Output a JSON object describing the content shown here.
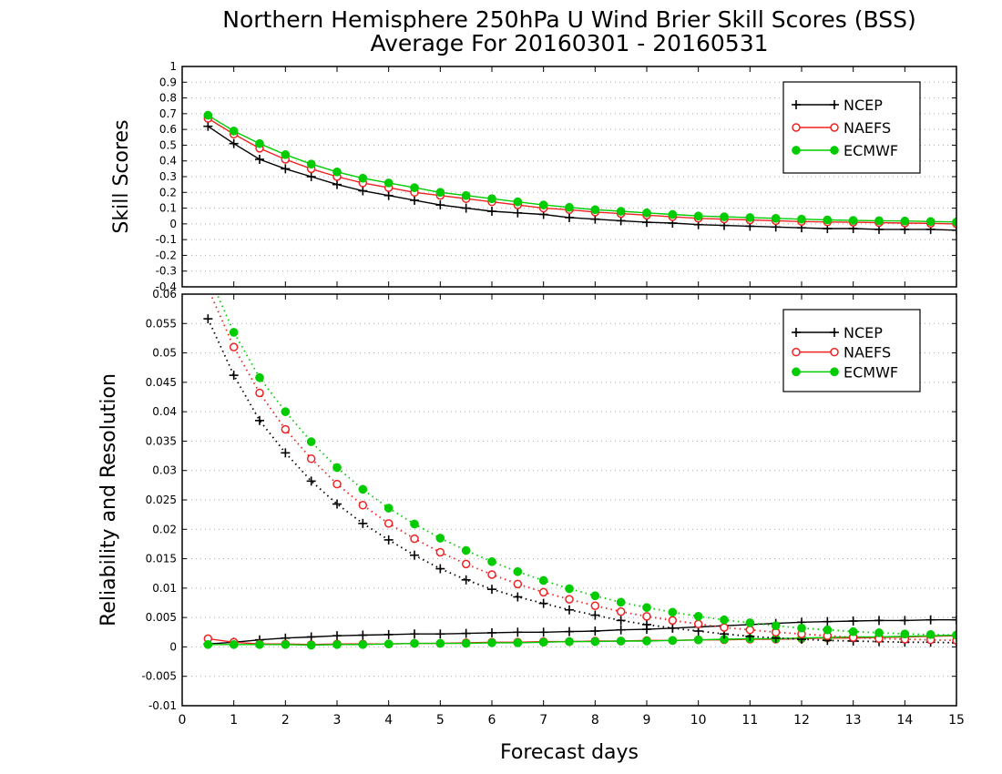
{
  "title_line1": "Northern Hemisphere 250hPa U Wind Brier Skill Scores (BSS)",
  "title_line2": "Average For 20160301 - 20160531",
  "xlabel": "Forecast days",
  "colors": {
    "NCEP": "#000000",
    "NAEFS": "#ee2222",
    "ECMWF": "#00cc00",
    "grid": "#aaaaaa"
  },
  "chart_data": [
    {
      "type": "line",
      "panel": "top",
      "ylabel": "Skill Scores",
      "xlim": [
        0,
        15
      ],
      "ylim": [
        -0.4,
        1
      ],
      "xticks": [
        "0",
        "1",
        "2",
        "3",
        "4",
        "5",
        "6",
        "7",
        "8",
        "9",
        "10",
        "11",
        "12",
        "13",
        "14",
        "15"
      ],
      "yticks": [
        "-0.4",
        "-0.3",
        "-0.2",
        "-0.1",
        "0",
        "0.1",
        "0.2",
        "0.3",
        "0.4",
        "0.5",
        "0.6",
        "0.7",
        "0.8",
        "0.9",
        "1"
      ],
      "grid": true,
      "legend": "top-right",
      "x": [
        0.5,
        1,
        1.5,
        2,
        2.5,
        3,
        3.5,
        4,
        4.5,
        5,
        5.5,
        6,
        6.5,
        7,
        7.5,
        8,
        8.5,
        9,
        9.5,
        10,
        10.5,
        11,
        11.5,
        12,
        12.5,
        13,
        13.5,
        14,
        14.5,
        15
      ],
      "series": [
        {
          "name": "NCEP",
          "marker": "plus",
          "line": "solid",
          "values": [
            0.62,
            0.51,
            0.41,
            0.35,
            0.3,
            0.25,
            0.21,
            0.18,
            0.15,
            0.12,
            0.1,
            0.08,
            0.07,
            0.06,
            0.04,
            0.03,
            0.02,
            0.01,
            0.005,
            -0.005,
            -0.01,
            -0.015,
            -0.02,
            -0.025,
            -0.03,
            -0.03,
            -0.035,
            -0.035,
            -0.035,
            -0.04
          ]
        },
        {
          "name": "NAEFS",
          "marker": "open-circle",
          "line": "solid",
          "values": [
            0.67,
            0.57,
            0.48,
            0.41,
            0.35,
            0.3,
            0.26,
            0.23,
            0.2,
            0.18,
            0.16,
            0.14,
            0.12,
            0.1,
            0.09,
            0.075,
            0.065,
            0.055,
            0.045,
            0.035,
            0.03,
            0.025,
            0.02,
            0.015,
            0.012,
            0.01,
            0.008,
            0.005,
            0.003,
            0.0
          ]
        },
        {
          "name": "ECMWF",
          "marker": "filled-circle",
          "line": "solid",
          "values": [
            0.69,
            0.59,
            0.51,
            0.44,
            0.38,
            0.33,
            0.29,
            0.26,
            0.23,
            0.2,
            0.18,
            0.16,
            0.14,
            0.12,
            0.105,
            0.09,
            0.08,
            0.07,
            0.06,
            0.05,
            0.045,
            0.04,
            0.035,
            0.03,
            0.025,
            0.022,
            0.02,
            0.018,
            0.015,
            0.012
          ]
        }
      ]
    },
    {
      "type": "line",
      "panel": "bottom",
      "ylabel": "Reliability and Resolution",
      "xlabel": "Forecast days",
      "xlim": [
        0,
        15
      ],
      "ylim": [
        -0.01,
        0.06
      ],
      "xticks": [
        "0",
        "1",
        "2",
        "3",
        "4",
        "5",
        "6",
        "7",
        "8",
        "9",
        "10",
        "11",
        "12",
        "13",
        "14",
        "15"
      ],
      "yticks": [
        "-0.01",
        "-0.005",
        "0",
        "0.005",
        "0.01",
        "0.015",
        "0.02",
        "0.025",
        "0.03",
        "0.035",
        "0.04",
        "0.045",
        "0.05",
        "0.055",
        "0.06"
      ],
      "grid": true,
      "legend": "top-right",
      "x": [
        0.5,
        1,
        1.5,
        2,
        2.5,
        3,
        3.5,
        4,
        4.5,
        5,
        5.5,
        6,
        6.5,
        7,
        7.5,
        8,
        8.5,
        9,
        9.5,
        10,
        10.5,
        11,
        11.5,
        12,
        12.5,
        13,
        13.5,
        14,
        14.5,
        15
      ],
      "series": [
        {
          "name": "NCEP",
          "marker": "plus",
          "line": "solid",
          "kind": "reliability",
          "values": [
            0.0005,
            0.0008,
            0.0012,
            0.0015,
            0.0017,
            0.0019,
            0.002,
            0.0021,
            0.0022,
            0.0022,
            0.0023,
            0.0024,
            0.0025,
            0.0025,
            0.0026,
            0.0027,
            0.0029,
            0.003,
            0.0032,
            0.0034,
            0.0036,
            0.0038,
            0.004,
            0.0042,
            0.0043,
            0.0044,
            0.0045,
            0.0045,
            0.0046,
            0.0046
          ]
        },
        {
          "name": "NAEFS",
          "marker": "open-circle",
          "line": "solid",
          "kind": "reliability",
          "values": [
            0.0014,
            0.0008,
            0.0005,
            0.0005,
            0.0004,
            0.0005,
            0.0005,
            0.0005,
            0.0006,
            0.0006,
            0.0007,
            0.0008,
            0.0008,
            0.0009,
            0.0009,
            0.001,
            0.001,
            0.0011,
            0.0011,
            0.0012,
            0.0012,
            0.0013,
            0.0013,
            0.0014,
            0.0015,
            0.0015,
            0.0016,
            0.0017,
            0.0018,
            0.0019
          ]
        },
        {
          "name": "ECMWF",
          "marker": "filled-circle",
          "line": "solid",
          "kind": "reliability",
          "values": [
            0.0004,
            0.0004,
            0.0004,
            0.0004,
            0.0003,
            0.0004,
            0.0004,
            0.0005,
            0.0006,
            0.0006,
            0.0006,
            0.0007,
            0.0007,
            0.0008,
            0.0009,
            0.0009,
            0.001,
            0.001,
            0.0011,
            0.0012,
            0.0013,
            0.0014,
            0.0014,
            0.0015,
            0.0016,
            0.0017,
            0.0017,
            0.0018,
            0.0019,
            0.002
          ]
        },
        {
          "name": "NCEP",
          "marker": "plus",
          "line": "dotted",
          "kind": "resolution",
          "values": [
            0.0558,
            0.0462,
            0.0385,
            0.033,
            0.0282,
            0.0243,
            0.021,
            0.0182,
            0.0156,
            0.0133,
            0.0114,
            0.0098,
            0.0085,
            0.0074,
            0.0063,
            0.0054,
            0.0045,
            0.0038,
            0.0032,
            0.0027,
            0.0022,
            0.0018,
            0.0015,
            0.0013,
            0.0011,
            0.001,
            0.0009,
            0.0008,
            0.0008,
            0.0007
          ]
        },
        {
          "name": "NAEFS",
          "marker": "open-circle",
          "line": "dotted",
          "kind": "resolution",
          "values": [
            0.061,
            0.051,
            0.0432,
            0.037,
            0.032,
            0.0277,
            0.0241,
            0.021,
            0.0184,
            0.0161,
            0.0141,
            0.0123,
            0.0107,
            0.0093,
            0.0081,
            0.007,
            0.006,
            0.0052,
            0.0045,
            0.0039,
            0.0033,
            0.0029,
            0.0025,
            0.0022,
            0.0019,
            0.0016,
            0.0014,
            0.0013,
            0.0012,
            0.0011
          ]
        },
        {
          "name": "ECMWF",
          "marker": "filled-circle",
          "line": "dotted",
          "kind": "resolution",
          "values": [
            0.0635,
            0.0535,
            0.0458,
            0.04,
            0.0349,
            0.0305,
            0.0268,
            0.0236,
            0.0209,
            0.0185,
            0.0164,
            0.0145,
            0.0128,
            0.0113,
            0.0099,
            0.0087,
            0.0076,
            0.0067,
            0.0059,
            0.0052,
            0.0046,
            0.0041,
            0.0036,
            0.0032,
            0.0029,
            0.0026,
            0.0024,
            0.0022,
            0.0021,
            0.002
          ]
        }
      ]
    }
  ]
}
